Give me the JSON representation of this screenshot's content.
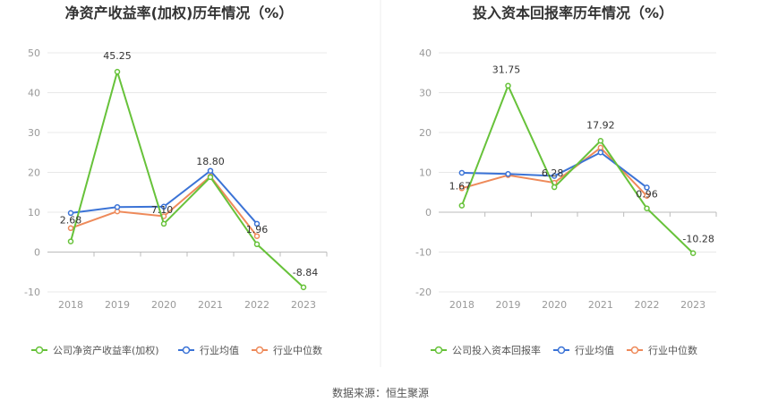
{
  "source_label": "数据来源：恒生聚源",
  "colors": {
    "company": "#67c23a",
    "avg": "#3b73d6",
    "median": "#ee8a5a",
    "grid": "#e8e8e8",
    "axis": "#cccccc"
  },
  "chart_data": [
    {
      "type": "line",
      "title": "净资产收益率(加权)历年情况（%）",
      "categories": [
        "2018",
        "2019",
        "2020",
        "2021",
        "2022",
        "2023"
      ],
      "ylim": [
        -10,
        50
      ],
      "yticks": [
        -10,
        0,
        10,
        20,
        30,
        40,
        50
      ],
      "grid": true,
      "legend_position": "bottom",
      "series": [
        {
          "name": "公司净资产收益率(加权)",
          "role": "company",
          "values": [
            2.68,
            45.25,
            7.1,
            18.8,
            1.96,
            -8.84
          ],
          "labels": [
            "2.68",
            "45.25",
            "7.10",
            "18.80",
            "1.96",
            "-8.84"
          ]
        },
        {
          "name": "行业均值",
          "role": "avg",
          "values": [
            9.8,
            11.3,
            11.4,
            20.4,
            7.1,
            null
          ]
        },
        {
          "name": "行业中位数",
          "role": "median",
          "values": [
            6.0,
            10.2,
            9.0,
            19.0,
            4.0,
            null
          ]
        }
      ]
    },
    {
      "type": "line",
      "title": "投入资本回报率历年情况（%）",
      "categories": [
        "2018",
        "2019",
        "2020",
        "2021",
        "2022",
        "2023"
      ],
      "ylim": [
        -20,
        40
      ],
      "yticks": [
        -20,
        -10,
        0,
        10,
        20,
        30,
        40
      ],
      "grid": true,
      "legend_position": "bottom",
      "series": [
        {
          "name": "公司投入资本回报率",
          "role": "company",
          "values": [
            1.67,
            31.75,
            6.28,
            17.92,
            0.96,
            -10.28
          ],
          "labels": [
            "1.67",
            "31.75",
            "6.28",
            "17.92",
            "0.96",
            "-10.28"
          ]
        },
        {
          "name": "行业均值",
          "role": "avg",
          "values": [
            9.9,
            9.6,
            9.1,
            15.0,
            6.2,
            null
          ]
        },
        {
          "name": "行业中位数",
          "role": "median",
          "values": [
            6.0,
            9.3,
            7.4,
            16.2,
            4.1,
            null
          ]
        }
      ]
    }
  ]
}
